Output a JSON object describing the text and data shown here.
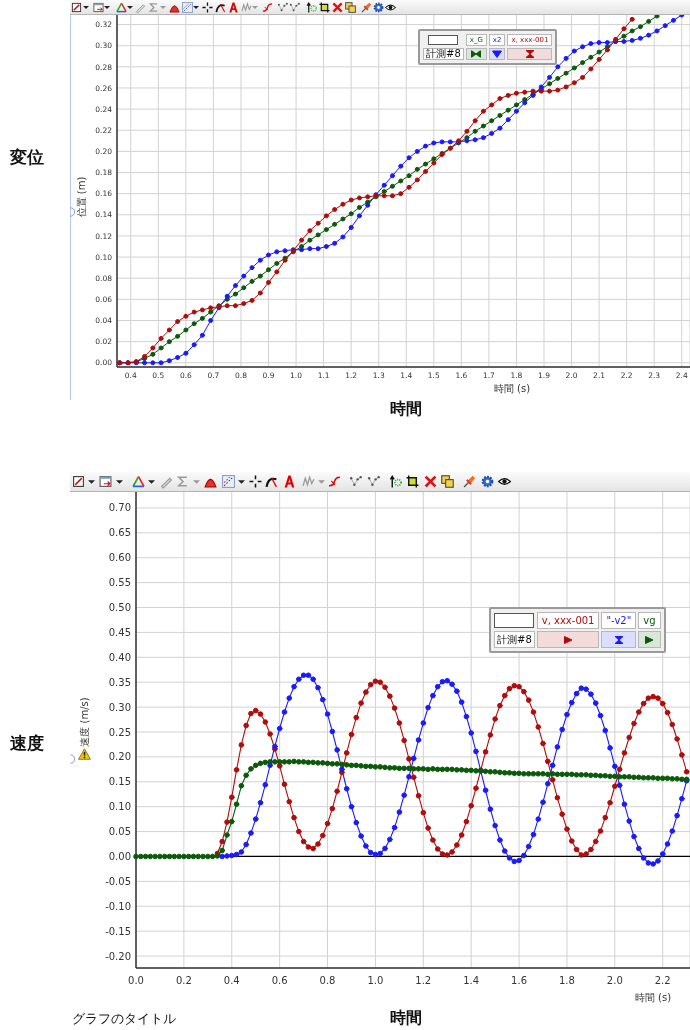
{
  "chart_data": [
    {
      "type": "line",
      "title": "変位",
      "xlabel": "時間 (s)",
      "ylabel": "位置 (m)",
      "legend_title": "計測#8",
      "annotations": [
        "時間"
      ],
      "x": [
        0.36,
        0.39,
        0.42,
        0.45,
        0.48,
        0.51,
        0.54,
        0.57,
        0.6,
        0.63,
        0.66,
        0.69,
        0.72,
        0.75,
        0.78,
        0.81,
        0.84,
        0.87,
        0.9,
        0.93,
        0.96,
        0.99,
        1.02,
        1.05,
        1.08,
        1.11,
        1.14,
        1.17,
        1.2,
        1.23,
        1.26,
        1.29,
        1.32,
        1.35,
        1.38,
        1.41,
        1.44,
        1.47,
        1.5,
        1.53,
        1.56,
        1.59,
        1.62,
        1.65,
        1.68,
        1.71,
        1.74,
        1.77,
        1.8,
        1.83,
        1.86,
        1.89,
        1.92,
        1.95,
        1.98,
        2.01,
        2.04,
        2.07,
        2.1,
        2.13,
        2.16,
        2.19,
        2.22,
        2.25,
        2.28,
        2.31,
        2.34,
        2.37,
        2.4
      ],
      "series": [
        {
          "name": "x_G",
          "color": "#0a5a0a",
          "values": [
            0,
            0,
            0.001,
            0.004,
            0.008,
            0.014,
            0.02,
            0.025,
            0.031,
            0.037,
            0.042,
            0.048,
            0.054,
            0.06,
            0.065,
            0.071,
            0.077,
            0.082,
            0.088,
            0.094,
            0.099,
            0.105,
            0.11,
            0.116,
            0.121,
            0.126,
            0.131,
            0.136,
            0.141,
            0.147,
            0.152,
            0.157,
            0.162,
            0.167,
            0.172,
            0.177,
            0.183,
            0.188,
            0.193,
            0.198,
            0.203,
            0.208,
            0.213,
            0.219,
            0.224,
            0.229,
            0.234,
            0.239,
            0.244,
            0.249,
            0.254,
            0.259,
            0.264,
            0.269,
            0.274,
            0.279,
            0.284,
            0.289,
            0.294,
            0.299,
            0.304,
            0.309,
            0.314,
            0.318,
            0.323,
            0.328,
            null,
            null,
            null
          ]
        },
        {
          "name": "x2",
          "color": "#1a1aff",
          "values": [
            0,
            0,
            0,
            0,
            0,
            0,
            0.002,
            0.005,
            0.009,
            0.017,
            0.026,
            0.04,
            0.052,
            0.063,
            0.073,
            0.082,
            0.09,
            0.097,
            0.102,
            0.105,
            0.106,
            0.107,
            0.107,
            0.108,
            0.108,
            0.11,
            0.113,
            0.119,
            0.128,
            0.139,
            0.149,
            0.159,
            0.168,
            0.177,
            0.186,
            0.194,
            0.2,
            0.205,
            0.208,
            0.209,
            0.209,
            0.209,
            0.21,
            0.211,
            0.213,
            0.217,
            0.222,
            0.23,
            0.238,
            0.246,
            0.253,
            0.261,
            0.27,
            0.28,
            0.288,
            0.295,
            0.299,
            0.302,
            0.303,
            0.303,
            0.304,
            0.304,
            0.305,
            0.307,
            0.31,
            0.314,
            0.319,
            0.324,
            0.329
          ]
        },
        {
          "name": "x, xxx-001",
          "color": "#b00c0c",
          "values": [
            0,
            0,
            0.001,
            0.006,
            0.014,
            0.023,
            0.031,
            0.039,
            0.044,
            0.048,
            0.05,
            0.052,
            0.053,
            0.054,
            0.054,
            0.056,
            0.059,
            0.066,
            0.076,
            0.086,
            0.097,
            0.106,
            0.116,
            0.125,
            0.132,
            0.139,
            0.145,
            0.15,
            0.154,
            0.156,
            0.157,
            0.158,
            0.158,
            0.158,
            0.16,
            0.166,
            0.173,
            0.181,
            0.189,
            0.197,
            0.203,
            0.21,
            0.219,
            0.229,
            0.238,
            0.244,
            0.25,
            0.253,
            0.255,
            0.256,
            0.257,
            0.257,
            0.257,
            0.258,
            0.261,
            0.265,
            0.27,
            0.278,
            0.287,
            0.296,
            0.306,
            0.316,
            0.325,
            null,
            null,
            null,
            null,
            null,
            null
          ]
        }
      ],
      "xlim": [
        0.35,
        2.43
      ],
      "ylim": [
        -0.004,
        0.33
      ],
      "xticks": [
        0.4,
        0.5,
        0.6,
        0.7,
        0.8,
        0.9,
        {
          "value": 1,
          "label": "1.0"
        },
        1.1,
        1.2,
        1.3,
        1.4,
        1.5,
        1.6,
        1.7,
        1.8,
        1.9,
        {
          "value": 2,
          "label": "2.0"
        },
        2.1,
        2.2,
        2.3,
        2.4
      ],
      "yticks": [
        {
          "value": 0,
          "label": "0.00"
        },
        0.02,
        0.04,
        0.06,
        0.08,
        {
          "value": 0.1,
          "label": "0.10"
        },
        0.12,
        0.14,
        0.16,
        0.18,
        {
          "value": 0.2,
          "label": "0.20"
        },
        0.22,
        0.24,
        0.26,
        0.28,
        {
          "value": 0.3,
          "label": "0.30"
        },
        0.32
      ],
      "grid": true,
      "legend": "top right",
      "marker": "circle",
      "line_style": "solid"
    },
    {
      "type": "line",
      "title": "速度",
      "xlabel": "時間 (s)",
      "ylabel": "速度 (m/s)",
      "legend_title": "計測#8",
      "annotations": [
        "時間",
        "グラフのタイトル"
      ],
      "x": [
        0,
        0.02,
        0.04,
        0.06,
        0.08,
        0.1,
        0.12,
        0.14,
        0.16,
        0.18,
        0.2,
        0.22,
        0.24,
        0.26,
        0.28,
        0.3,
        0.32,
        0.34,
        0.36,
        0.38,
        0.4,
        0.42,
        0.44,
        0.46,
        0.48,
        0.5,
        0.52,
        0.54,
        0.56,
        0.58,
        0.6,
        0.62,
        0.64,
        0.66,
        0.68,
        0.7,
        0.72,
        0.74,
        0.76,
        0.78,
        0.8,
        0.82,
        0.84,
        0.86,
        0.88,
        0.9,
        0.92,
        0.94,
        0.96,
        0.98,
        1,
        1.02,
        1.04,
        1.06,
        1.08,
        1.1,
        1.12,
        1.14,
        1.16,
        1.18,
        1.2,
        1.22,
        1.24,
        1.26,
        1.28,
        1.3,
        1.32,
        1.34,
        1.36,
        1.38,
        1.4,
        1.42,
        1.44,
        1.46,
        1.48,
        1.5,
        1.52,
        1.54,
        1.56,
        1.58,
        1.6,
        1.62,
        1.64,
        1.66,
        1.68,
        1.7,
        1.72,
        1.74,
        1.76,
        1.78,
        1.8,
        1.82,
        1.84,
        1.86,
        1.88,
        1.9,
        1.92,
        1.94,
        1.96,
        1.98,
        2,
        2.02,
        2.04,
        2.06,
        2.08,
        2.1,
        2.12,
        2.14,
        2.16,
        2.18,
        2.2,
        2.22,
        2.24,
        2.26,
        2.28,
        2.3
      ],
      "series": [
        {
          "name": "v, xxx-001",
          "color": "#b00c0c",
          "values": [
            null,
            null,
            null,
            null,
            null,
            null,
            null,
            null,
            null,
            null,
            null,
            null,
            null,
            null,
            null,
            null,
            null,
            0.006,
            0.03,
            0.069,
            0.119,
            0.174,
            0.224,
            0.263,
            0.287,
            0.293,
            0.286,
            0.27,
            0.246,
            0.216,
            0.182,
            0.145,
            0.11,
            0.078,
            0.05,
            0.03,
            0.019,
            0.016,
            0.025,
            0.042,
            0.066,
            0.096,
            0.131,
            0.169,
            0.208,
            0.245,
            0.279,
            0.308,
            0.33,
            0.345,
            0.352,
            0.35,
            0.34,
            0.322,
            0.298,
            0.268,
            0.233,
            0.196,
            0.159,
            0.122,
            0.088,
            0.057,
            0.033,
            0.015,
            0.005,
            0.003,
            0.009,
            0.023,
            0.043,
            0.07,
            0.102,
            0.137,
            0.173,
            0.21,
            0.244,
            0.276,
            0.303,
            0.323,
            0.337,
            0.343,
            0.341,
            0.331,
            0.314,
            0.29,
            0.26,
            0.227,
            0.191,
            0.154,
            0.118,
            0.085,
            0.055,
            0.031,
            0.014,
            0.003,
            0.005,
            0.014,
            0.03,
            0.051,
            0.078,
            0.108,
            0.141,
            0.175,
            0.208,
            0.239,
            0.267,
            0.29,
            0.307,
            0.318,
            0.321,
            0.318,
            0.307,
            0.289,
            0.265,
            0.236,
            0.204,
            0.17
          ]
        },
        {
          "name": "\"-v2\"",
          "color": "#1a1aff",
          "values": [
            null,
            null,
            null,
            null,
            null,
            null,
            null,
            null,
            null,
            null,
            null,
            null,
            null,
            null,
            null,
            null,
            null,
            null,
            0,
            0.001,
            0.002,
            0.004,
            0.009,
            0.024,
            0.047,
            0.075,
            0.108,
            0.144,
            0.183,
            0.221,
            0.257,
            0.29,
            0.318,
            0.341,
            0.356,
            0.364,
            0.364,
            0.356,
            0.339,
            0.315,
            0.286,
            0.251,
            0.214,
            0.175,
            0.136,
            0.1,
            0.068,
            0.041,
            0.021,
            0.008,
            0.004,
            0.006,
            0.016,
            0.034,
            0.058,
            0.089,
            0.123,
            0.16,
            0.197,
            0.234,
            0.268,
            0.299,
            0.323,
            0.341,
            0.351,
            0.353,
            0.346,
            0.332,
            0.31,
            0.281,
            0.248,
            0.211,
            0.172,
            0.133,
            0.095,
            0.062,
            0.033,
            0.011,
            -0.003,
            -0.01,
            -0.008,
            0.002,
            0.02,
            0.044,
            0.075,
            0.109,
            0.146,
            0.183,
            0.22,
            0.255,
            0.285,
            0.309,
            0.327,
            0.338,
            0.336,
            0.326,
            0.308,
            0.283,
            0.253,
            0.218,
            0.181,
            0.143,
            0.105,
            0.071,
            0.04,
            0.016,
            -0.003,
            -0.013,
            -0.015,
            -0.009,
            0.005,
            0.025,
            0.051,
            0.082,
            0.116,
            0.152
          ]
        },
        {
          "name": "vg",
          "color": "#0a5a0a",
          "values": [
            0,
            0,
            0,
            0,
            0,
            0,
            0,
            0,
            0,
            0,
            0,
            0,
            0,
            0,
            0,
            0,
            0,
            0.001,
            0.012,
            0.043,
            0.07,
            0.105,
            0.142,
            0.163,
            0.176,
            0.183,
            0.187,
            0.189,
            0.19,
            0.19,
            0.19,
            0.19,
            0.19,
            0.191,
            0.19,
            0.19,
            0.189,
            0.189,
            0.188,
            0.188,
            0.187,
            0.186,
            0.186,
            0.185,
            0.184,
            0.183,
            0.183,
            0.182,
            0.181,
            0.181,
            0.18,
            0.18,
            0.179,
            0.178,
            0.178,
            0.177,
            0.177,
            0.177,
            0.176,
            0.176,
            0.176,
            0.175,
            0.176,
            0.175,
            0.175,
            0.175,
            0.175,
            0.174,
            0.174,
            0.173,
            0.173,
            0.172,
            0.172,
            0.171,
            0.17,
            0.17,
            0.169,
            0.168,
            0.168,
            0.167,
            0.167,
            0.166,
            0.166,
            0.166,
            0.166,
            0.166,
            0.165,
            0.166,
            0.165,
            0.165,
            0.165,
            0.165,
            0.164,
            0.164,
            0.164,
            0.163,
            0.163,
            0.162,
            0.162,
            0.161,
            0.161,
            0.16,
            0.16,
            0.16,
            0.159,
            0.159,
            0.158,
            0.158,
            0.158,
            0.157,
            0.157,
            0.157,
            0.156,
            0.156,
            0.155,
            0.155
          ]
        }
      ],
      "xlim": [
        0,
        2.314
      ],
      "ylim": [
        -0.224,
        0.734
      ],
      "xticks": [
        {
          "value": 0,
          "label": "0.0"
        },
        0.2,
        0.4,
        0.6,
        0.8,
        {
          "value": 1,
          "label": "1.0"
        },
        1.2,
        1.4,
        1.6,
        1.8,
        {
          "value": 2,
          "label": "2.0"
        },
        2.2
      ],
      "yticks": [
        {
          "value": -0.2,
          "label": "-0.20"
        },
        -0.15,
        {
          "value": -0.1,
          "label": "-0.10"
        },
        -0.05,
        {
          "value": 0,
          "label": "0.00"
        },
        0.05,
        {
          "value": 0.1,
          "label": "0.10"
        },
        0.15,
        {
          "value": 0.2,
          "label": "0.20"
        },
        0.25,
        {
          "value": 0.3,
          "label": "0.30"
        },
        0.35,
        {
          "value": 0.4,
          "label": "0.40"
        },
        0.45,
        {
          "value": 0.5,
          "label": "0.50"
        },
        0.55,
        {
          "value": 0.6,
          "label": "0.60"
        },
        0.65,
        {
          "value": 0.7,
          "label": "0.70"
        }
      ],
      "ref_lines": [
        {
          "axis": "y",
          "value": 0,
          "color": "#000000"
        }
      ],
      "grid": true,
      "legend": "top right",
      "marker": "circle",
      "line_style": "solid"
    }
  ]
}
